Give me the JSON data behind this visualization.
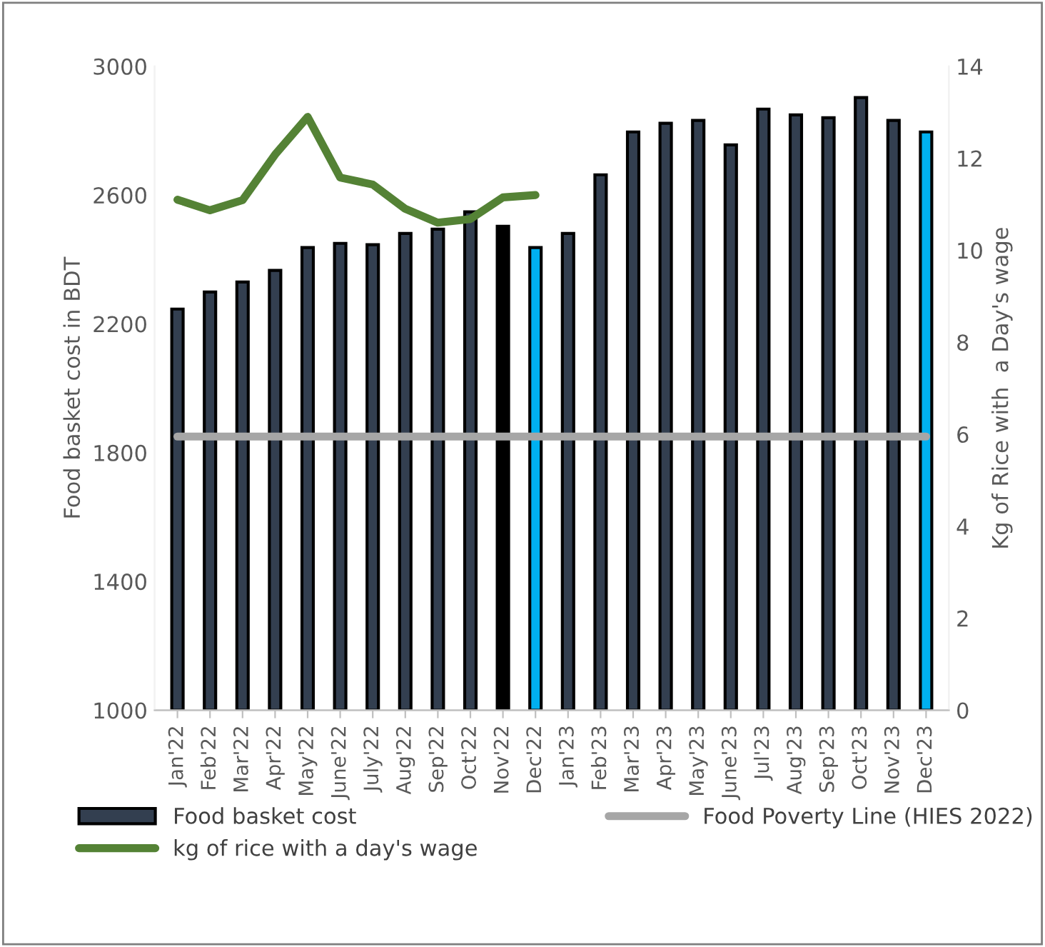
{
  "chart_data": {
    "type": "bar",
    "ylabel": "Food basket cost in BDT",
    "y2label": "Kg of Rice with  a Day's wage",
    "categories": [
      "Jan'22",
      "Feb'22",
      "Mar'22",
      "Apr'22",
      "May'22",
      "June'22",
      "July'22",
      "Aug'22",
      "Sep'22",
      "Oct'22",
      "Nov'22",
      "Dec'22",
      "Jan'23",
      "Feb'23",
      "Mar'23",
      "Apr'23",
      "May'23",
      "June'23",
      "Jul'23",
      "Aug'23",
      "Sep'23",
      "Oct'23",
      "Nov'23",
      "Dec'23"
    ],
    "series": [
      {
        "name": "Food basket cost",
        "colors": [
          "#333f50",
          "#333f50",
          "#333f50",
          "#333f50",
          "#333f50",
          "#333f50",
          "#333f50",
          "#333f50",
          "#333f50",
          "#333f50",
          "#000000",
          "#00b0f0",
          "#333f50",
          "#333f50",
          "#333f50",
          "#333f50",
          "#333f50",
          "#333f50",
          "#333f50",
          "#333f50",
          "#333f50",
          "#333f50",
          "#333f50",
          "#00b0f0"
        ],
        "color": "#333f50",
        "values": [
          2246,
          2299,
          2330,
          2366,
          2437,
          2450,
          2446,
          2481,
          2494,
          2548,
          2503,
          2437,
          2481,
          2663,
          2796,
          2823,
          2832,
          2756,
          2867,
          2849,
          2840,
          2903,
          2832,
          2796
        ]
      },
      {
        "name": "Food Poverty Line (HIES 2022)",
        "type": "line",
        "color": "#a6a6a6",
        "values": [
          1850,
          1850,
          1850,
          1850,
          1850,
          1850,
          1850,
          1850,
          1850,
          1850,
          1850,
          1850,
          1850,
          1850,
          1850,
          1850,
          1850,
          1850,
          1850,
          1850,
          1850,
          1850,
          1850,
          1850
        ]
      },
      {
        "name": "kg of rice with a day's wage",
        "type": "line",
        "axis": "y2",
        "color": "#548235",
        "values": [
          11.1,
          10.87,
          11.09,
          12.08,
          12.9,
          11.58,
          11.43,
          10.9,
          10.6,
          10.68,
          11.15,
          11.2,
          null,
          null,
          null,
          null,
          null,
          null,
          null,
          null,
          null,
          null,
          null,
          null
        ]
      }
    ],
    "ylim": [
      1000,
      3000
    ],
    "yticks": [
      1000,
      1400,
      1800,
      2200,
      2600,
      3000
    ],
    "y2lim": [
      0,
      14
    ],
    "y2ticks": [
      0,
      2,
      4,
      6,
      8,
      10,
      12,
      14
    ],
    "grid": false,
    "legend": "bottom",
    "marker": "none",
    "line_style": "solid"
  }
}
